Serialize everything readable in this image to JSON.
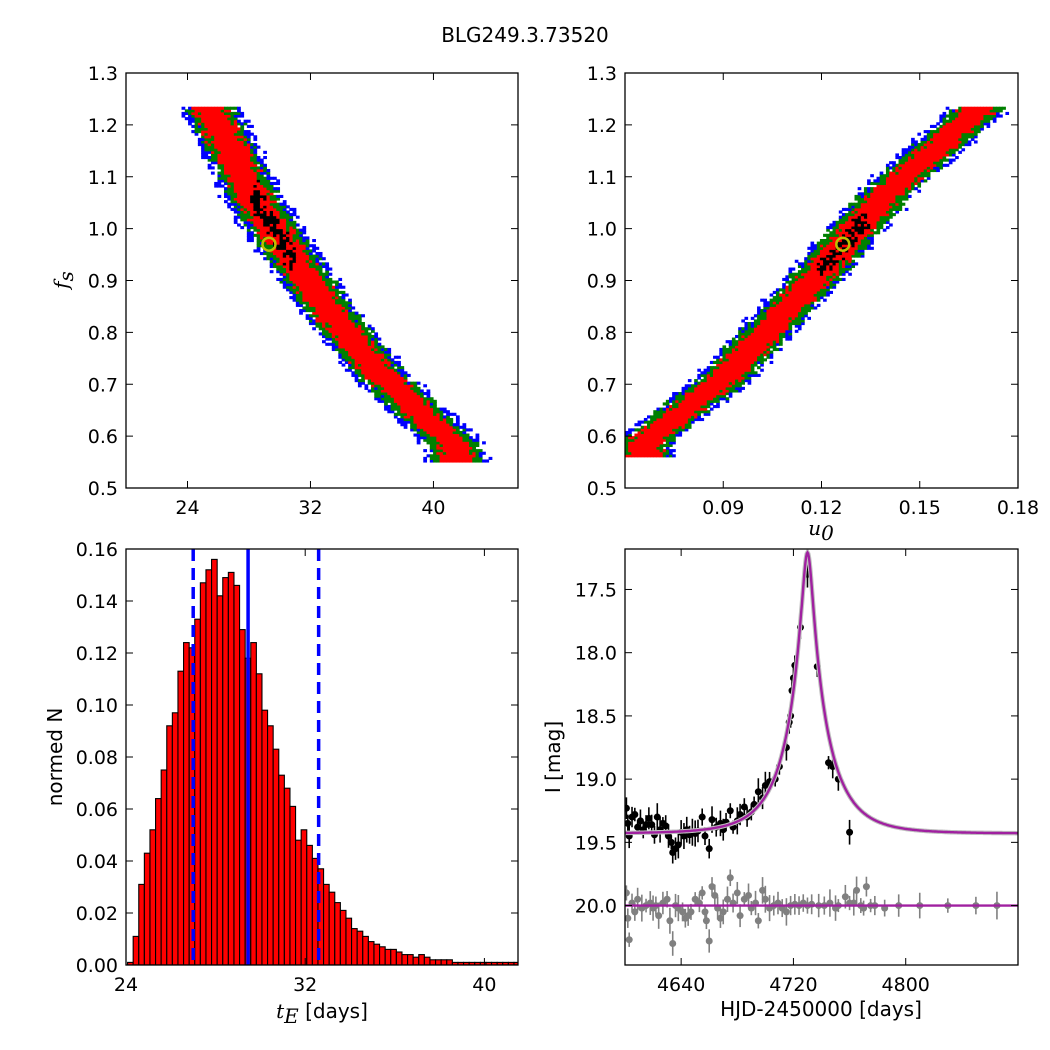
{
  "title": "BLG249.3.73520",
  "chart_data": [
    {
      "id": "tE_fs",
      "type": "heatmap",
      "xlabel": "",
      "ylabel": "f_s",
      "xlim": [
        20,
        45.5
      ],
      "ylim": [
        0.5,
        1.3
      ],
      "xticks": [
        24,
        32,
        40
      ],
      "xtick_labels": [
        "24",
        "32",
        "40"
      ],
      "yticks": [
        0.5,
        0.6,
        0.7,
        0.8,
        0.9,
        1.0,
        1.1,
        1.2,
        1.3
      ],
      "ytick_labels": [
        "0.5",
        "0.6",
        "0.7",
        "0.8",
        "0.9",
        "1.0",
        "1.1",
        "1.2",
        "1.3"
      ],
      "best_fit": {
        "x": 29.3,
        "y": 0.97
      },
      "band": {
        "centerline": [
          [
            25.5,
            1.23
          ],
          [
            28.5,
            1.05
          ],
          [
            32.5,
            0.87
          ],
          [
            36.5,
            0.72
          ],
          [
            41.5,
            0.58
          ]
        ]
      },
      "colors": {
        "core": "#000000",
        "sigma1": "#ff0000",
        "sigma2": "#008000",
        "sigma3": "#0000ff",
        "marker": "#bfbf00"
      }
    },
    {
      "id": "u0_fs",
      "type": "heatmap",
      "xlabel": "u_0",
      "ylabel": "",
      "xlim": [
        0.06,
        0.18
      ],
      "ylim": [
        0.5,
        1.3
      ],
      "xticks": [
        0.09,
        0.12,
        0.15,
        0.18
      ],
      "xtick_labels": [
        "0.09",
        "0.12",
        "0.15",
        "0.18"
      ],
      "yticks": [
        0.5,
        0.6,
        0.7,
        0.8,
        0.9,
        1.0,
        1.1,
        1.2,
        1.3
      ],
      "ytick_labels": [
        "0.5",
        "0.6",
        "0.7",
        "0.8",
        "0.9",
        "1.0",
        "1.1",
        "1.2",
        "1.3"
      ],
      "best_fit": {
        "x": 0.1265,
        "y": 0.97
      },
      "band": {
        "centerline": [
          [
            0.066,
            0.59
          ],
          [
            0.09,
            0.71
          ],
          [
            0.12,
            0.92
          ],
          [
            0.14,
            1.07
          ],
          [
            0.168,
            1.23
          ]
        ]
      },
      "colors": {
        "core": "#000000",
        "sigma1": "#ff0000",
        "sigma2": "#008000",
        "sigma3": "#0000ff",
        "marker": "#bfbf00"
      }
    },
    {
      "id": "tE_hist",
      "type": "bar",
      "xlabel": "t_E [days]",
      "ylabel": "normed N",
      "xlim": [
        24,
        41.5
      ],
      "ylim": [
        0,
        0.16
      ],
      "xticks": [
        24,
        32,
        40
      ],
      "xtick_labels": [
        "24",
        "32",
        "40"
      ],
      "yticks": [
        0,
        0.02,
        0.04,
        0.06,
        0.08,
        0.1,
        0.12,
        0.14,
        0.16
      ],
      "ytick_labels": [
        "0.00",
        "0.02",
        "0.04",
        "0.06",
        "0.08",
        "0.10",
        "0.12",
        "0.14",
        "0.16"
      ],
      "bin_start": 24.07,
      "bin_width": 0.25,
      "values": [
        0.001,
        0.011,
        0.031,
        0.043,
        0.052,
        0.064,
        0.075,
        0.092,
        0.097,
        0.113,
        0.124,
        0.122,
        0.133,
        0.147,
        0.152,
        0.156,
        0.142,
        0.149,
        0.151,
        0.146,
        0.129,
        0.118,
        0.124,
        0.112,
        0.098,
        0.092,
        0.083,
        0.073,
        0.068,
        0.061,
        0.048,
        0.052,
        0.046,
        0.041,
        0.037,
        0.031,
        0.028,
        0.024,
        0.021,
        0.018,
        0.014,
        0.013,
        0.011,
        0.009,
        0.008,
        0.007,
        0.006,
        0.006,
        0.005,
        0.004,
        0.004,
        0.003,
        0.004,
        0.003,
        0.002,
        0.002,
        0.002,
        0.002,
        0.001,
        0.001,
        0.001,
        0.001,
        0.001,
        0.001,
        0.001,
        0.001,
        0.001,
        0.001,
        0.001,
        0.001
      ],
      "vlines": [
        {
          "x": 27.0,
          "style": "dashed",
          "color": "#0000ff"
        },
        {
          "x": 29.45,
          "style": "solid",
          "color": "#0000ff"
        },
        {
          "x": 32.6,
          "style": "dashed",
          "color": "#0000ff"
        }
      ],
      "colors": {
        "bar": "#ff0000",
        "edge": "#000000"
      }
    },
    {
      "id": "lightcurve",
      "type": "scatter",
      "xlabel": "HJD-2450000 [days]",
      "ylabel": "I [mag]",
      "xlim": [
        4600,
        4880
      ],
      "ylim": [
        20.47,
        17.18
      ],
      "xticks": [
        4640,
        4720,
        4800
      ],
      "xtick_labels": [
        "4640",
        "4720",
        "4800"
      ],
      "yticks": [
        17.5,
        18.0,
        18.5,
        19.0,
        19.5,
        20.0
      ],
      "ytick_labels": [
        "17.5",
        "18.0",
        "18.5",
        "19.0",
        "19.5",
        "20.0"
      ],
      "model": {
        "t0": 4730,
        "tE": 29.3,
        "u0": 0.1265,
        "fs": 0.97,
        "baseline": 19.43
      },
      "series": [
        {
          "color": "#000000",
          "points": [
            [
              4601,
              19.23
            ],
            [
              4602,
              19.35
            ],
            [
              4603,
              19.45
            ],
            [
              4605,
              19.3
            ],
            [
              4607,
              19.28
            ],
            [
              4609,
              19.38
            ],
            [
              4611,
              19.33
            ],
            [
              4613,
              19.4
            ],
            [
              4615,
              19.36
            ],
            [
              4617,
              19.31
            ],
            [
              4619,
              19.36
            ],
            [
              4621,
              19.44
            ],
            [
              4623,
              19.3
            ],
            [
              4625,
              19.4
            ],
            [
              4627,
              19.35
            ],
            [
              4629,
              19.37
            ],
            [
              4631,
              19.45
            ],
            [
              4633,
              19.5
            ],
            [
              4634,
              19.58
            ],
            [
              4636,
              19.55
            ],
            [
              4638,
              19.52
            ],
            [
              4640,
              19.42
            ],
            [
              4642,
              19.45
            ],
            [
              4644,
              19.4
            ],
            [
              4646,
              19.44
            ],
            [
              4648,
              19.42
            ],
            [
              4650,
              19.43
            ],
            [
              4652,
              19.41
            ],
            [
              4655,
              19.3
            ],
            [
              4657,
              19.45
            ],
            [
              4660,
              19.55
            ],
            [
              4662,
              19.32
            ],
            [
              4665,
              19.38
            ],
            [
              4668,
              19.35
            ],
            [
              4670,
              19.4
            ],
            [
              4672,
              19.34
            ],
            [
              4675,
              19.25
            ],
            [
              4677,
              19.38
            ],
            [
              4680,
              19.33
            ],
            [
              4682,
              19.28
            ],
            [
              4685,
              19.22
            ],
            [
              4687,
              19.3
            ],
            [
              4690,
              19.26
            ],
            [
              4692,
              19.2
            ],
            [
              4695,
              19.1
            ],
            [
              4698,
              19.15
            ],
            [
              4700,
              19.05
            ],
            [
              4703,
              19.02
            ],
            [
              4707,
              19.0
            ],
            [
              4710,
              18.9
            ],
            [
              4715,
              18.75
            ],
            [
              4717,
              18.55
            ],
            [
              4718,
              18.5
            ],
            [
              4719,
              18.3
            ],
            [
              4720,
              18.2
            ],
            [
              4721,
              18.1
            ],
            [
              4725,
              17.8
            ],
            [
              4730,
              17.38
            ],
            [
              4737,
              18.11
            ],
            [
              4745,
              18.87
            ],
            [
              4748,
              18.9
            ],
            [
              4752,
              19.0
            ],
            [
              4760,
              19.42
            ]
          ]
        },
        {
          "color": "#808080",
          "points": [
            [
              4601,
              19.9
            ],
            [
              4602,
              20.1
            ],
            [
              4603,
              20.27
            ],
            [
              4605,
              19.98
            ],
            [
              4607,
              20.05
            ],
            [
              4609,
              19.95
            ],
            [
              4612,
              20.02
            ],
            [
              4615,
              20.0
            ],
            [
              4618,
              19.98
            ],
            [
              4620,
              20.02
            ],
            [
              4622,
              20.0
            ],
            [
              4624,
              20.08
            ],
            [
              4627,
              19.98
            ],
            [
              4630,
              19.95
            ],
            [
              4632,
              20.12
            ],
            [
              4634,
              20.3
            ],
            [
              4636,
              20.0
            ],
            [
              4638,
              20.02
            ],
            [
              4641,
              20.05
            ],
            [
              4643,
              20.1
            ],
            [
              4645,
              20.08
            ],
            [
              4647,
              20.05
            ],
            [
              4650,
              19.95
            ],
            [
              4653,
              19.98
            ],
            [
              4655,
              19.9
            ],
            [
              4657,
              20.05
            ],
            [
              4658,
              20.12
            ],
            [
              4660,
              20.28
            ],
            [
              4662,
              19.85
            ],
            [
              4664,
              19.92
            ],
            [
              4666,
              20.02
            ],
            [
              4668,
              20.1
            ],
            [
              4670,
              20.05
            ],
            [
              4673,
              19.95
            ],
            [
              4675,
              19.78
            ],
            [
              4677,
              19.98
            ],
            [
              4680,
              19.9
            ],
            [
              4682,
              20.08
            ],
            [
              4685,
              19.95
            ],
            [
              4688,
              19.92
            ],
            [
              4690,
              20.02
            ],
            [
              4693,
              19.98
            ],
            [
              4695,
              20.12
            ],
            [
              4698,
              19.88
            ],
            [
              4700,
              19.95
            ],
            [
              4703,
              20.02
            ],
            [
              4706,
              20.0
            ],
            [
              4709,
              19.98
            ],
            [
              4712,
              20.02
            ],
            [
              4715,
              20.05
            ],
            [
              4718,
              20.0
            ],
            [
              4721,
              19.99
            ],
            [
              4724,
              20.0
            ],
            [
              4727,
              19.98
            ],
            [
              4730,
              20.0
            ],
            [
              4733,
              19.99
            ],
            [
              4738,
              20.0
            ],
            [
              4742,
              20.0
            ],
            [
              4746,
              19.98
            ],
            [
              4750,
              20.02
            ],
            [
              4752,
              20.0
            ],
            [
              4757,
              19.93
            ],
            [
              4760,
              19.98
            ],
            [
              4763,
              19.98
            ],
            [
              4765,
              19.88
            ],
            [
              4768,
              20.0
            ],
            [
              4770,
              20.02
            ],
            [
              4772,
              19.85
            ],
            [
              4775,
              20.0
            ],
            [
              4778,
              20.0
            ],
            [
              4785,
              20.02
            ],
            [
              4795,
              20.0
            ],
            [
              4810,
              20.0
            ],
            [
              4830,
              20.0
            ],
            [
              4850,
              20.0
            ],
            [
              4865,
              20.0
            ]
          ]
        }
      ],
      "colors": {
        "model": "#a020a0",
        "model_shadow": "#c0c0c0"
      }
    }
  ]
}
